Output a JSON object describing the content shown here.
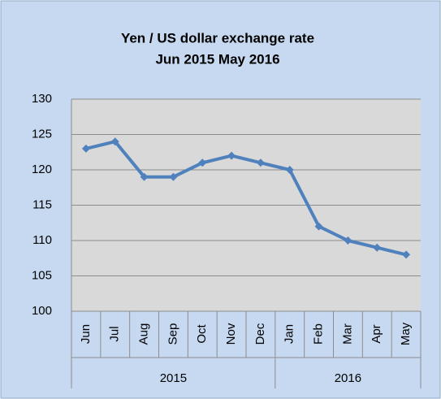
{
  "chart_data": {
    "type": "line",
    "title": "Yen / US dollar exchange rate",
    "subtitle": "Jun 2015 May 2016",
    "categories": [
      "Jun",
      "Jul",
      "Aug",
      "Sep",
      "Oct",
      "Nov",
      "Dec",
      "Jan",
      "Feb",
      "Mar",
      "Apr",
      "May"
    ],
    "groups": [
      {
        "label": "2015",
        "count": 7
      },
      {
        "label": "2016",
        "count": 5
      }
    ],
    "values": [
      123,
      124,
      119,
      119,
      121,
      122,
      121,
      120,
      112,
      110,
      109,
      108
    ],
    "color": "#4f81bd",
    "ylim": [
      100,
      130
    ],
    "yticks": [
      100,
      105,
      110,
      115,
      120,
      125,
      130
    ],
    "grid": true
  }
}
